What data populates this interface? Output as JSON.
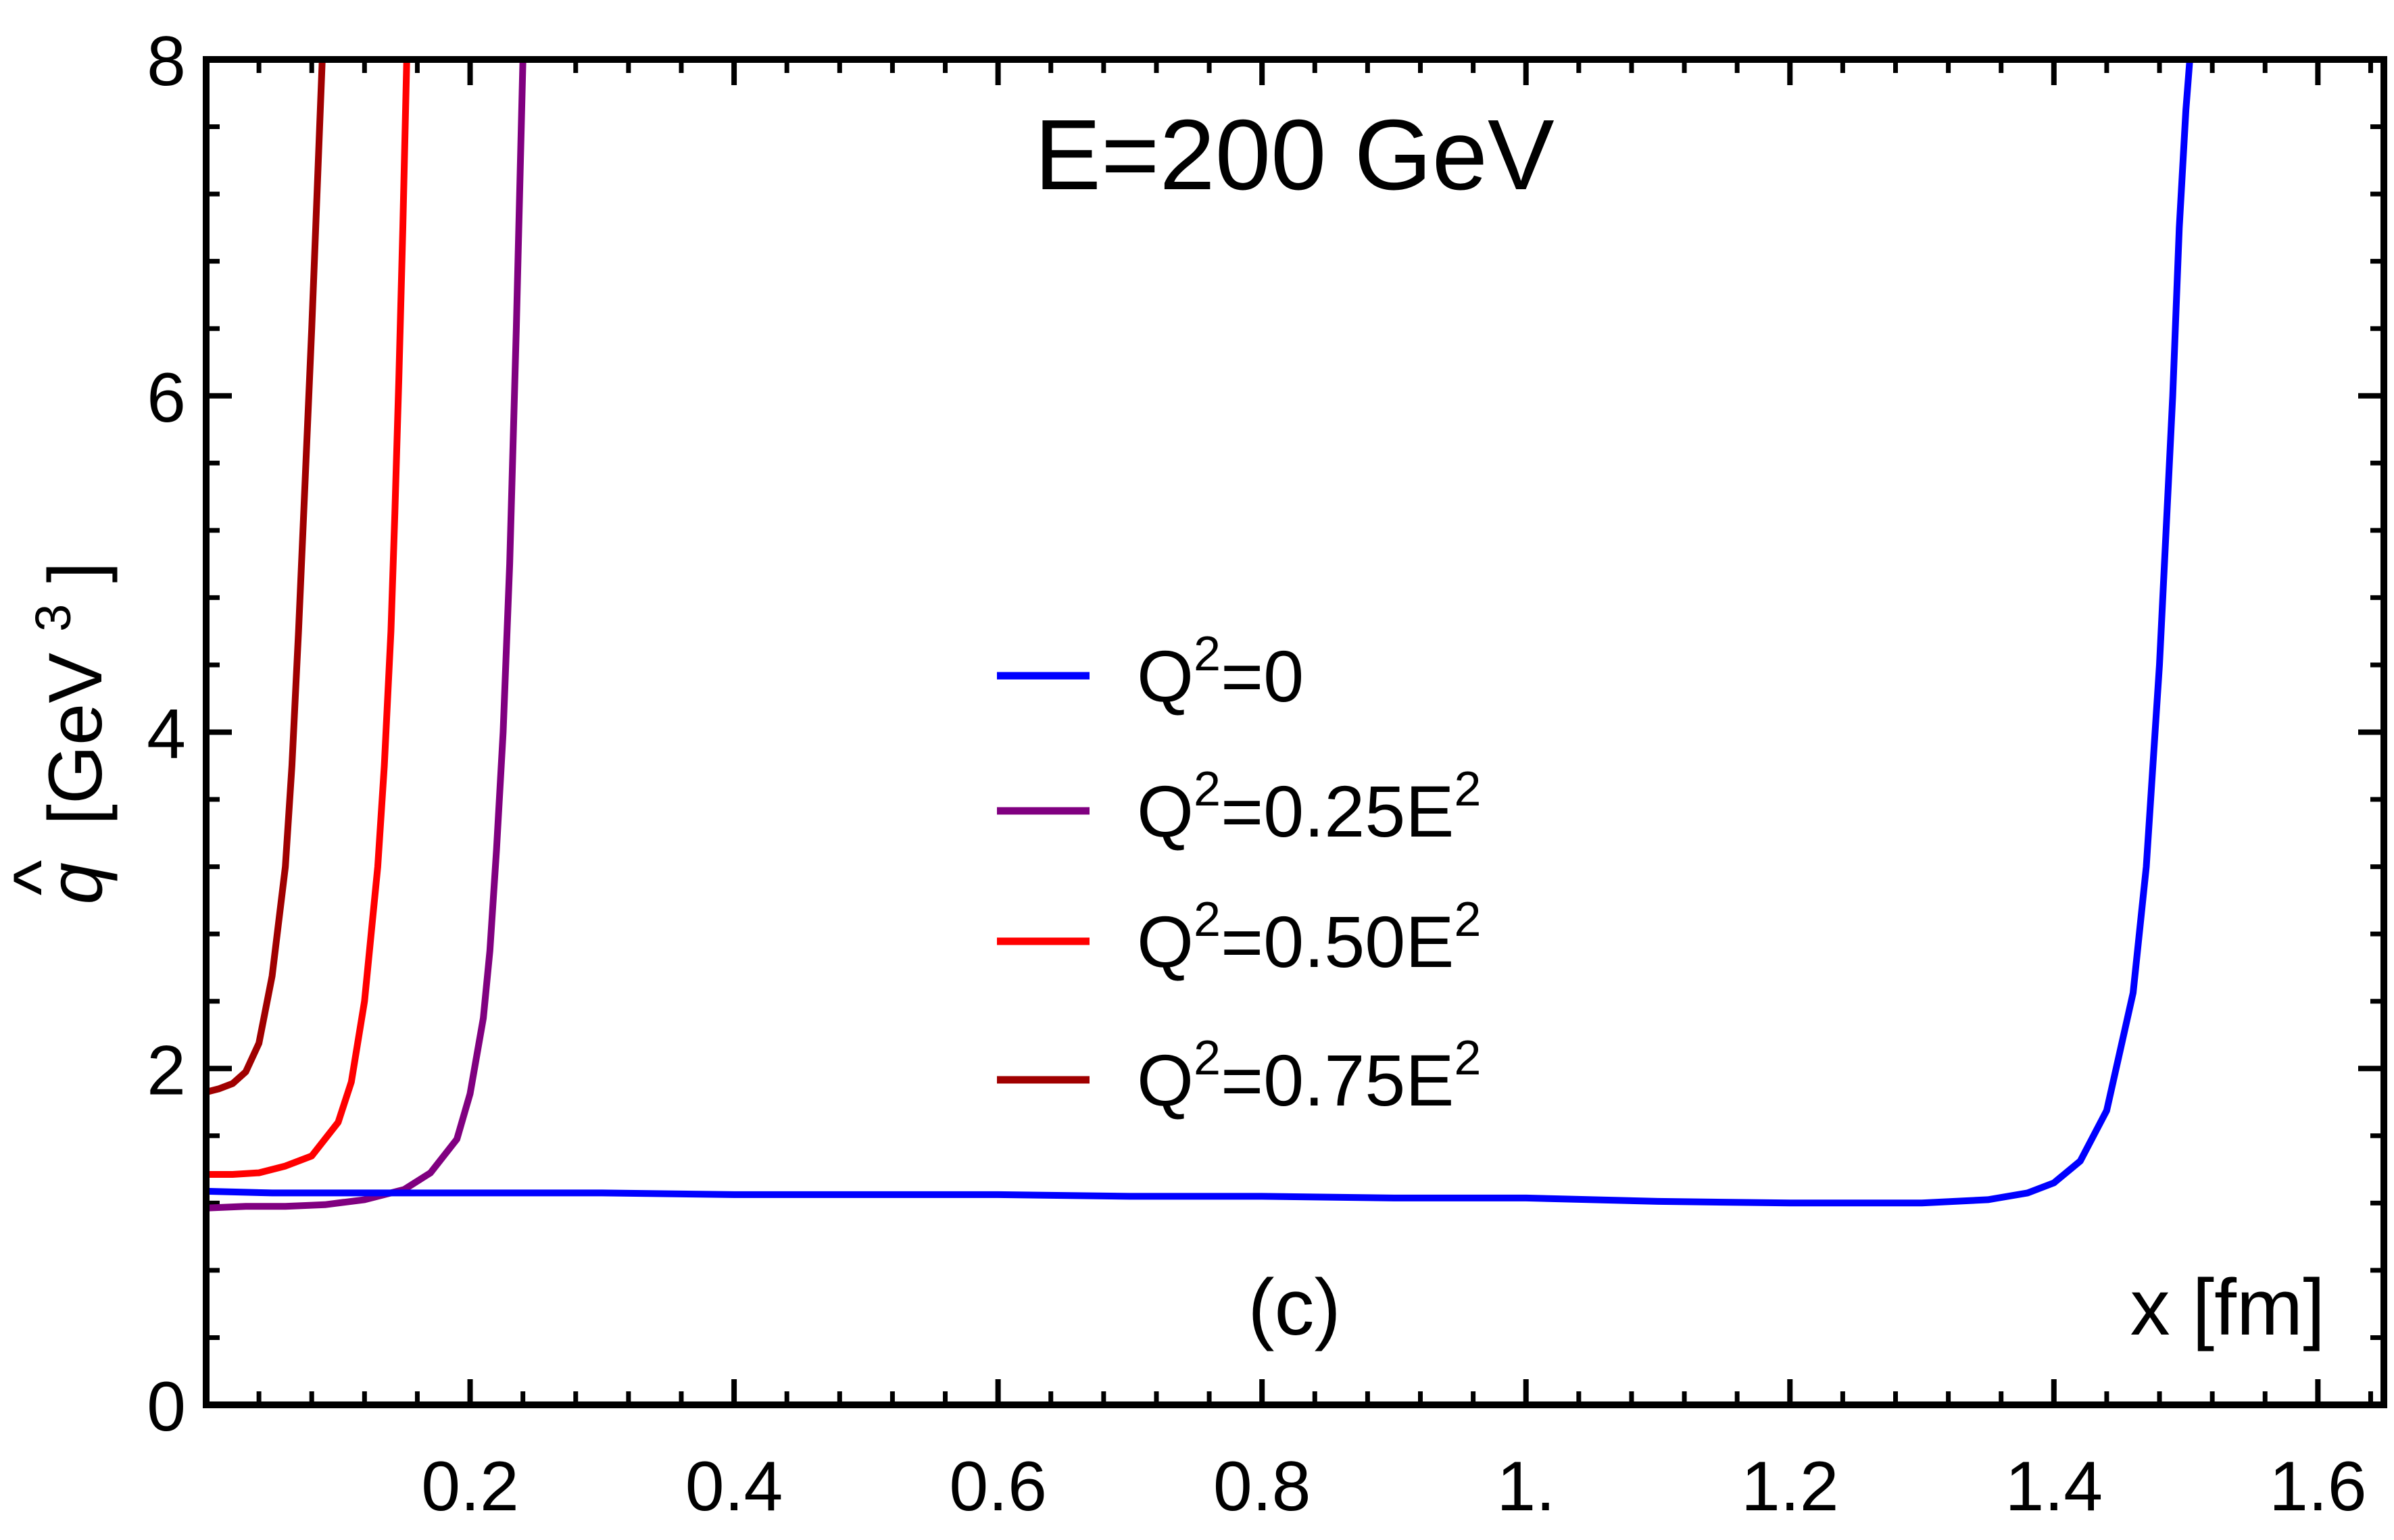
{
  "chart_data": {
    "type": "line",
    "title": "E=200 GeV",
    "panel_label": "(c)",
    "xlabel": "x [fm]",
    "ylabel": {
      "symbol": "q",
      "hat": "^",
      "bracket_open": "[GeV",
      "sup": "3",
      "bracket_close": "]"
    },
    "xlim": [
      0.0,
      1.65
    ],
    "ylim": [
      0,
      8
    ],
    "x_ticks": [
      {
        "value": 0.2,
        "label": "0.2"
      },
      {
        "value": 0.4,
        "label": "0.4"
      },
      {
        "value": 0.6,
        "label": "0.6"
      },
      {
        "value": 0.8,
        "label": "0.8"
      },
      {
        "value": 1.0,
        "label": "1."
      },
      {
        "value": 1.2,
        "label": "1.2"
      },
      {
        "value": 1.4,
        "label": "1.4"
      },
      {
        "value": 1.6,
        "label": "1.6"
      }
    ],
    "y_ticks": [
      {
        "value": 0,
        "label": "0"
      },
      {
        "value": 2,
        "label": "2"
      },
      {
        "value": 4,
        "label": "4"
      },
      {
        "value": 6,
        "label": "6"
      },
      {
        "value": 8,
        "label": "8"
      }
    ],
    "legend_position": "center-right",
    "series": [
      {
        "name": "Q²=0",
        "label_base": "Q",
        "label_sup": "2",
        "label_rest": "=0",
        "label_sup2": "",
        "color": "#0000ff",
        "x": [
          0.0,
          0.05,
          0.1,
          0.2,
          0.3,
          0.4,
          0.5,
          0.6,
          0.7,
          0.8,
          0.9,
          1.0,
          1.1,
          1.2,
          1.3,
          1.35,
          1.38,
          1.4,
          1.42,
          1.44,
          1.46,
          1.47,
          1.48,
          1.49,
          1.495,
          1.5,
          1.503
        ],
        "y": [
          1.27,
          1.26,
          1.26,
          1.26,
          1.26,
          1.25,
          1.25,
          1.25,
          1.24,
          1.24,
          1.23,
          1.23,
          1.21,
          1.2,
          1.2,
          1.22,
          1.26,
          1.32,
          1.45,
          1.75,
          2.45,
          3.2,
          4.4,
          6.0,
          7.0,
          7.7,
          8.0
        ]
      },
      {
        "name": "Q²=0.25E²",
        "label_base": "Q",
        "label_sup": "2",
        "label_rest": "=0.25E",
        "label_sup2": "2",
        "color": "#800080",
        "x": [
          0.0,
          0.03,
          0.06,
          0.09,
          0.12,
          0.15,
          0.17,
          0.19,
          0.2,
          0.21,
          0.215,
          0.22,
          0.225,
          0.23,
          0.235,
          0.24
        ],
        "y": [
          1.17,
          1.18,
          1.18,
          1.19,
          1.22,
          1.28,
          1.38,
          1.58,
          1.85,
          2.3,
          2.7,
          3.3,
          4.0,
          5.0,
          6.4,
          8.0
        ]
      },
      {
        "name": "Q²=0.50E²",
        "label_base": "Q",
        "label_sup": "2",
        "label_rest": "=0.50E",
        "label_sup2": "2",
        "color": "#ff0000",
        "x": [
          0.0,
          0.02,
          0.04,
          0.06,
          0.08,
          0.1,
          0.11,
          0.12,
          0.13,
          0.135,
          0.14,
          0.143,
          0.146,
          0.149,
          0.152
        ],
        "y": [
          1.37,
          1.37,
          1.38,
          1.42,
          1.48,
          1.68,
          1.92,
          2.4,
          3.2,
          3.8,
          4.6,
          5.3,
          6.1,
          7.0,
          8.0
        ]
      },
      {
        "name": "Q²=0.75E²",
        "label_base": "Q",
        "label_sup": "2",
        "label_rest": "=0.75E",
        "label_sup2": "2",
        "color": "#a00000",
        "x": [
          0.0,
          0.01,
          0.02,
          0.03,
          0.04,
          0.05,
          0.06,
          0.065,
          0.07,
          0.075,
          0.08,
          0.083,
          0.086,
          0.088
        ],
        "y": [
          1.86,
          1.88,
          1.91,
          1.98,
          2.15,
          2.55,
          3.2,
          3.8,
          4.6,
          5.5,
          6.4,
          7.0,
          7.6,
          8.0
        ]
      }
    ]
  }
}
